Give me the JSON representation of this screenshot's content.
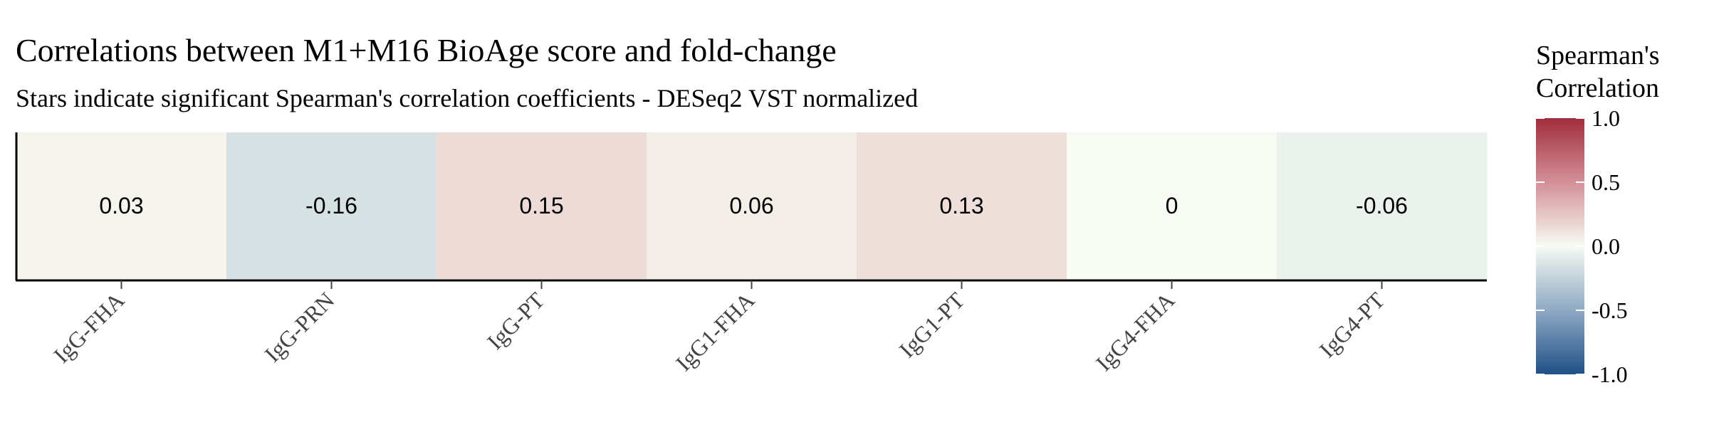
{
  "chart_data": {
    "type": "heatmap",
    "title": "Correlations between M1+M16 BioAge score and fold-change",
    "subtitle": "Stars indicate significant Spearman's correlation coefficients - DESeq2 VST normalized",
    "categories": [
      "IgG-FHA",
      "IgG-PRN",
      "IgG-PT",
      "IgG1-FHA",
      "IgG1-PT",
      "IgG4-FHA",
      "IgG4-PT"
    ],
    "values": [
      0.03,
      -0.16,
      0.15,
      0.06,
      0.13,
      0,
      -0.06
    ],
    "value_labels": [
      "0.03",
      "-0.16",
      "0.15",
      "0.06",
      "0.13",
      "0",
      "-0.06"
    ],
    "legend": {
      "title_line1": "Spearman's",
      "title_line2": "Correlation",
      "position": "right",
      "range": [
        -1.0,
        1.0
      ],
      "ticks": [
        1.0,
        0.5,
        0.0,
        -0.5,
        -1.0
      ],
      "tick_labels": [
        "1.0",
        "0.5",
        "0.0",
        "-0.5",
        "-1.0"
      ],
      "colors": {
        "low": "#1f5085",
        "mid_low": "#8fa9c5",
        "mid": "#f7fbf3",
        "mid_high": "#d48f98",
        "high": "#a02c3c"
      }
    },
    "grid": false
  }
}
